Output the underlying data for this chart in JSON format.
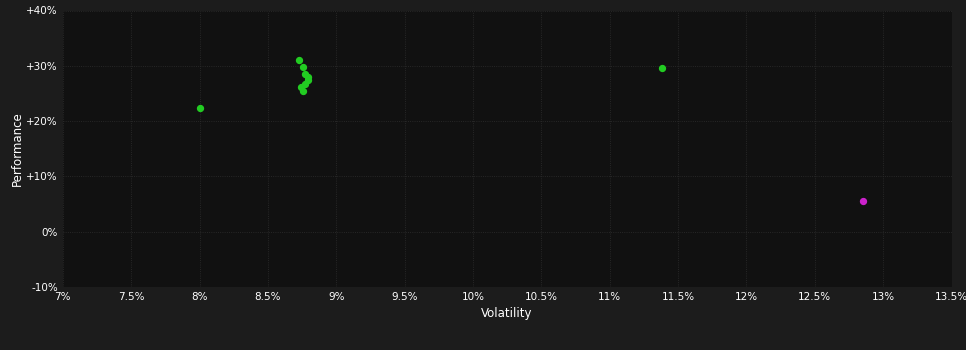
{
  "background_color": "#1c1c1c",
  "plot_bg_color": "#111111",
  "text_color": "#ffffff",
  "xlabel": "Volatility",
  "ylabel": "Performance",
  "xlim": [
    0.07,
    0.135
  ],
  "ylim": [
    -0.1,
    0.4
  ],
  "xticks": [
    0.07,
    0.075,
    0.08,
    0.085,
    0.09,
    0.095,
    0.1,
    0.105,
    0.11,
    0.115,
    0.12,
    0.125,
    0.13,
    0.135
  ],
  "yticks": [
    -0.1,
    0.0,
    0.1,
    0.2,
    0.3,
    0.4
  ],
  "green_points": [
    [
      0.08,
      0.223
    ],
    [
      0.0873,
      0.31
    ],
    [
      0.0876,
      0.297
    ],
    [
      0.0877,
      0.286
    ],
    [
      0.0879,
      0.28
    ],
    [
      0.0879,
      0.274
    ],
    [
      0.0877,
      0.267
    ],
    [
      0.0874,
      0.261
    ],
    [
      0.0876,
      0.254
    ],
    [
      0.1138,
      0.296
    ]
  ],
  "magenta_points": [
    [
      0.1285,
      0.055
    ]
  ],
  "green_color": "#22cc22",
  "magenta_color": "#cc22cc",
  "marker_size": 18
}
